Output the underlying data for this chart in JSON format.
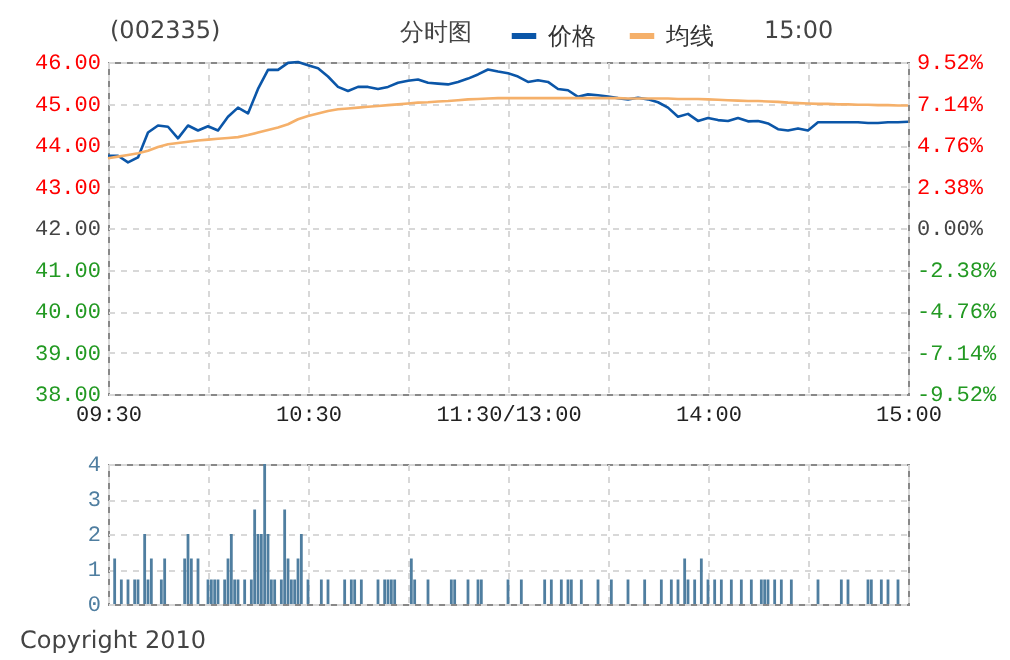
{
  "chart_data": [
    {
      "type": "line",
      "title": "(002335)",
      "annotations": [
        "分时图",
        "15:00",
        "Copyright 2010"
      ],
      "categories": [
        "09:30",
        null,
        null,
        null,
        null,
        null,
        null,
        null,
        null,
        null,
        null,
        null,
        null,
        null,
        null,
        null,
        null,
        null,
        null,
        null,
        "10:30",
        null,
        null,
        null,
        null,
        null,
        null,
        null,
        null,
        null,
        null,
        null,
        null,
        null,
        null,
        null,
        null,
        null,
        null,
        null,
        "11:30/13:00",
        null,
        null,
        null,
        null,
        null,
        null,
        null,
        null,
        null,
        null,
        null,
        null,
        null,
        null,
        null,
        null,
        null,
        null,
        null,
        "14:00",
        null,
        null,
        null,
        null,
        null,
        null,
        null,
        null,
        null,
        null,
        null,
        null,
        null,
        null,
        null,
        null,
        null,
        null,
        null,
        "15:00"
      ],
      "series": [
        {
          "name": "价格",
          "color": "#0b56a8",
          "values": [
            43.74,
            43.74,
            43.58,
            43.7,
            44.3,
            44.47,
            44.44,
            44.16,
            44.47,
            44.35,
            44.45,
            44.35,
            44.68,
            44.9,
            44.76,
            45.35,
            45.81,
            45.81,
            45.98,
            46.0,
            45.92,
            45.85,
            45.65,
            45.4,
            45.3,
            45.4,
            45.4,
            45.35,
            45.4,
            45.5,
            45.55,
            45.58,
            45.5,
            45.48,
            45.46,
            45.52,
            45.6,
            45.7,
            45.82,
            45.77,
            45.73,
            45.65,
            45.52,
            45.56,
            45.52,
            45.35,
            45.32,
            45.16,
            45.22,
            45.2,
            45.17,
            45.13,
            45.1,
            45.14,
            45.1,
            45.03,
            44.9,
            44.68,
            44.75,
            44.58,
            44.65,
            44.6,
            44.58,
            44.65,
            44.57,
            44.58,
            44.52,
            44.38,
            44.35,
            44.4,
            44.35,
            44.55,
            44.55,
            44.55,
            44.55,
            44.55,
            44.53,
            44.53,
            44.55,
            44.55,
            44.56
          ]
        },
        {
          "name": "均线",
          "color": "#f5b06a",
          "values": [
            43.68,
            43.72,
            43.76,
            43.8,
            43.86,
            43.95,
            44.02,
            44.05,
            44.08,
            44.11,
            44.13,
            44.15,
            44.17,
            44.19,
            44.24,
            44.3,
            44.36,
            44.42,
            44.5,
            44.62,
            44.7,
            44.76,
            44.82,
            44.86,
            44.88,
            44.9,
            44.92,
            44.94,
            44.96,
            44.98,
            45.0,
            45.02,
            45.03,
            45.05,
            45.06,
            45.08,
            45.1,
            45.11,
            45.12,
            45.13,
            45.13,
            45.13,
            45.13,
            45.13,
            45.13,
            45.13,
            45.13,
            45.13,
            45.13,
            45.13,
            45.13,
            45.13,
            45.12,
            45.12,
            45.12,
            45.12,
            45.12,
            45.11,
            45.11,
            45.11,
            45.1,
            45.09,
            45.08,
            45.07,
            45.06,
            45.06,
            45.05,
            45.04,
            45.02,
            45.01,
            45.0,
            44.99,
            44.99,
            44.98,
            44.98,
            44.97,
            44.97,
            44.96,
            44.96,
            44.95,
            44.95
          ]
        }
      ],
      "ylim": [
        38,
        46
      ],
      "yticks": [
        {
          "value": 38,
          "label": "38.00"
        },
        {
          "value": 39,
          "label": "39.00"
        },
        {
          "value": 40,
          "label": "40.00"
        },
        {
          "value": 41,
          "label": "41.00"
        },
        {
          "value": 42,
          "label": "42.00"
        },
        {
          "value": 43,
          "label": "43.00"
        },
        {
          "value": 44,
          "label": "44.00"
        },
        {
          "value": 45,
          "label": "45.00"
        },
        {
          "value": 46,
          "label": "46.00"
        }
      ],
      "y2lim": [
        -9.52,
        9.52
      ],
      "y2ticks": [
        {
          "value": -9.52,
          "label": "-9.52%"
        },
        {
          "value": -7.14,
          "label": "-7.14%"
        },
        {
          "value": -4.76,
          "label": "-4.76%"
        },
        {
          "value": -2.38,
          "label": "-2.38%"
        },
        {
          "value": 0,
          "label": "0.00%"
        },
        {
          "value": 2.38,
          "label": "2.38%"
        },
        {
          "value": 4.76,
          "label": "4.76%"
        },
        {
          "value": 7.14,
          "label": "7.14%"
        },
        {
          "value": 9.52,
          "label": "9.52%"
        }
      ],
      "grid": true,
      "legend": "top",
      "line_style": "solid"
    },
    {
      "type": "bar",
      "color": "#4f7ea0",
      "categories": [
        null,
        null,
        null,
        null,
        null,
        null,
        null,
        null,
        null,
        null,
        null,
        null,
        null,
        null,
        null,
        null,
        null,
        null,
        null,
        null,
        null,
        null,
        null,
        null,
        null,
        null,
        null,
        null,
        null,
        null,
        null,
        null,
        null,
        null,
        null,
        null,
        null,
        null,
        null,
        null,
        null,
        null,
        null,
        null,
        null,
        null,
        null,
        null,
        null,
        null,
        null,
        null,
        null,
        null,
        null,
        null,
        null,
        null,
        null,
        null,
        null,
        null,
        null,
        null,
        null,
        null,
        null,
        null,
        null,
        null,
        null,
        null,
        null,
        null,
        null,
        null,
        null,
        null,
        null,
        null,
        null,
        null,
        null,
        null,
        null,
        null,
        null,
        null,
        null,
        null,
        null,
        null,
        null,
        null,
        null,
        null,
        null,
        null,
        null,
        null,
        null,
        null,
        null,
        null,
        null,
        null,
        null,
        null,
        null,
        null,
        null,
        null,
        null,
        null,
        null,
        null,
        null,
        null,
        null,
        null,
        null,
        null,
        null,
        null,
        null,
        null,
        null,
        null,
        null,
        null,
        null,
        null,
        null,
        null,
        null,
        null,
        null,
        null,
        null,
        null,
        null,
        null,
        null,
        null,
        null,
        null,
        null,
        null,
        null,
        null,
        null,
        null,
        null,
        null,
        null,
        null,
        null,
        null,
        null,
        null,
        null,
        null,
        null,
        null,
        null,
        null,
        null,
        null,
        null,
        null,
        null,
        null,
        null,
        null,
        null,
        null,
        null,
        null,
        null,
        null,
        null,
        null,
        null,
        null,
        null,
        null,
        null,
        null,
        null,
        null,
        null,
        null,
        null,
        null,
        null,
        null,
        null,
        null,
        null,
        null,
        null,
        null,
        null,
        null,
        null,
        null,
        null,
        null,
        null,
        null,
        null,
        null,
        null,
        null,
        null,
        null,
        null,
        null,
        null,
        null,
        null,
        null,
        null,
        null,
        null,
        null,
        null,
        null,
        null,
        null,
        null,
        null,
        null,
        null,
        null,
        null,
        null,
        null,
        null,
        null,
        null
      ],
      "values": [
        null,
        null,
        1.3,
        null,
        0.7,
        null,
        0.7,
        null,
        0.7,
        0.7,
        null,
        2,
        0.7,
        1.3,
        null,
        null,
        0.7,
        1.3,
        null,
        null,
        null,
        null,
        null,
        1.3,
        2,
        1.3,
        null,
        1.3,
        null,
        null,
        0.7,
        0.7,
        0.7,
        0.7,
        null,
        0.7,
        1.3,
        2,
        0.7,
        0.7,
        null,
        0.7,
        null,
        0.7,
        2.7,
        2,
        2,
        4,
        2,
        0.7,
        0.7,
        null,
        0.7,
        2.7,
        1.3,
        0.7,
        0.7,
        1.3,
        2,
        null,
        0.7,
        null,
        null,
        null,
        0.7,
        null,
        0.7,
        null,
        null,
        null,
        null,
        0.7,
        null,
        0.7,
        0.7,
        null,
        0.7,
        null,
        null,
        null,
        null,
        0.7,
        null,
        0.7,
        0.7,
        0.7,
        0.7,
        null,
        null,
        null,
        null,
        1.3,
        0.7,
        null,
        null,
        null,
        0.7,
        null,
        null,
        null,
        null,
        null,
        null,
        0.7,
        0.7,
        null,
        null,
        null,
        0.7,
        null,
        null,
        0.7,
        0.7,
        null,
        null,
        null,
        null,
        null,
        null,
        null,
        0.7,
        null,
        null,
        null,
        0.7,
        null,
        null,
        null,
        null,
        null,
        null,
        0.7,
        null,
        0.7,
        null,
        null,
        0.7,
        null,
        0.7,
        0.7,
        null,
        null,
        0.7,
        null,
        null,
        null,
        null,
        0.7,
        null,
        null,
        null,
        0.7,
        null,
        null,
        null,
        null,
        0.7,
        null,
        null,
        null,
        null,
        0.7,
        null,
        null,
        null,
        null,
        0.7,
        null,
        null,
        0.7,
        null,
        0.7,
        null,
        1.3,
        0.7,
        null,
        0.7,
        null,
        1.3,
        null,
        0.7,
        null,
        0.7,
        null,
        0.7,
        null,
        null,
        0.7,
        null,
        null,
        0.7,
        null,
        null,
        0.7,
        null,
        null,
        0.7,
        0.7,
        0.7,
        null,
        0.7,
        null,
        0.7,
        null,
        null,
        0.7,
        null,
        null,
        null,
        null,
        null,
        null,
        null,
        0.7,
        null,
        null,
        null,
        null,
        null,
        null,
        0.7,
        null,
        0.7,
        null,
        null,
        null,
        null,
        null,
        0.7,
        0.7,
        null,
        null,
        0.7,
        null,
        0.7,
        null,
        null,
        0.7,
        null,
        null,
        null
      ],
      "ylim": [
        0,
        4
      ],
      "yticks": [
        0,
        1,
        2,
        3,
        4
      ],
      "grid": true,
      "tick_labels": "y"
    }
  ]
}
